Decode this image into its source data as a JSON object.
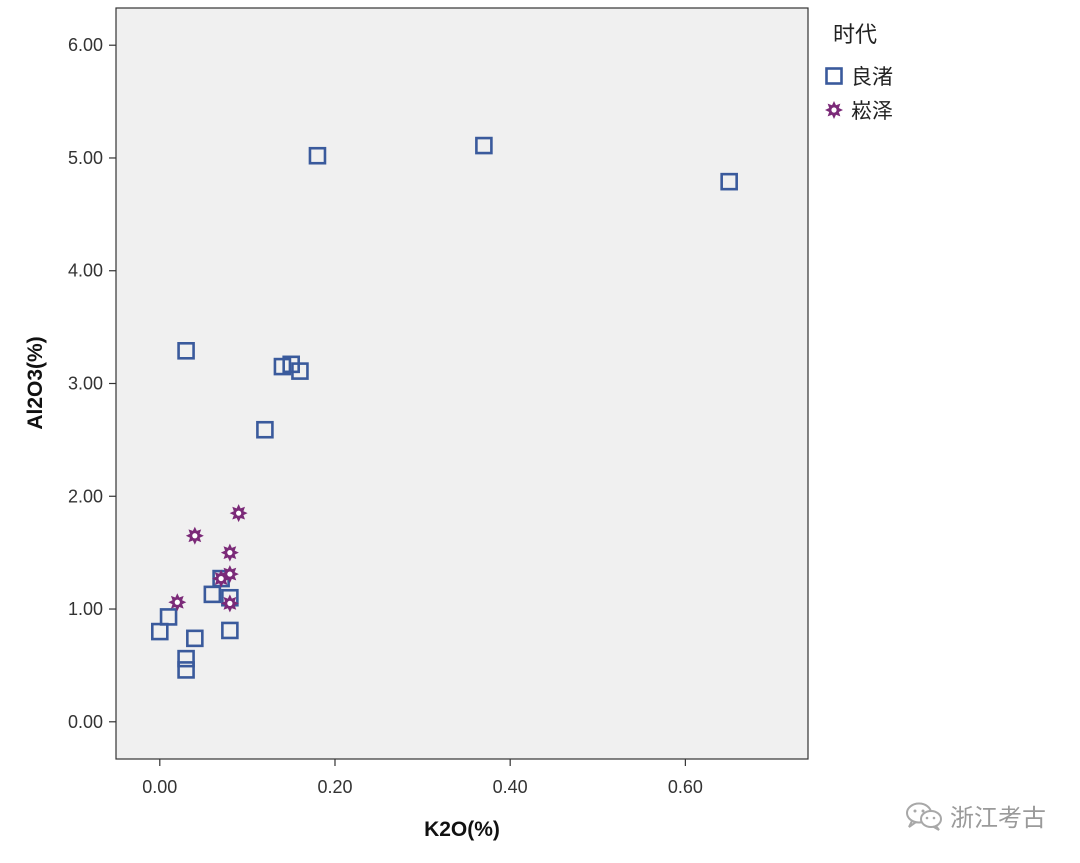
{
  "chart_data": {
    "type": "scatter",
    "xlabel": "K2O(%)",
    "ylabel": "Al2O3(%)",
    "xlim": [
      -0.05,
      0.74
    ],
    "ylim": [
      -0.33,
      6.33
    ],
    "x_ticks": [
      "0.00",
      "0.20",
      "0.40",
      "0.60"
    ],
    "x_tick_values": [
      0,
      0.2,
      0.4,
      0.6
    ],
    "y_ticks": [
      "0.00",
      "1.00",
      "2.00",
      "3.00",
      "4.00",
      "5.00",
      "6.00"
    ],
    "y_tick_values": [
      0,
      1,
      2,
      3,
      4,
      5,
      6
    ],
    "legend": {
      "title": "时代",
      "placement": "right-top"
    },
    "plot_background": "#f0f0f0",
    "grid": false,
    "series": [
      {
        "name": "良渚",
        "marker": "square",
        "color": "#3a5a9c",
        "points": [
          {
            "x": 0.18,
            "y": 5.02
          },
          {
            "x": 0.37,
            "y": 5.11
          },
          {
            "x": 0.65,
            "y": 4.79
          },
          {
            "x": 0.03,
            "y": 3.29
          },
          {
            "x": 0.14,
            "y": 3.15
          },
          {
            "x": 0.15,
            "y": 3.17
          },
          {
            "x": 0.16,
            "y": 3.11
          },
          {
            "x": 0.12,
            "y": 2.59
          },
          {
            "x": 0.07,
            "y": 1.27
          },
          {
            "x": 0.06,
            "y": 1.13
          },
          {
            "x": 0.08,
            "y": 1.1
          },
          {
            "x": 0.01,
            "y": 0.93
          },
          {
            "x": 0.0,
            "y": 0.8
          },
          {
            "x": 0.08,
            "y": 0.81
          },
          {
            "x": 0.04,
            "y": 0.74
          },
          {
            "x": 0.03,
            "y": 0.56
          },
          {
            "x": 0.03,
            "y": 0.46
          }
        ]
      },
      {
        "name": "崧泽",
        "marker": "star",
        "color": "#7b2a78",
        "points": [
          {
            "x": 0.09,
            "y": 1.85
          },
          {
            "x": 0.04,
            "y": 1.65
          },
          {
            "x": 0.08,
            "y": 1.5
          },
          {
            "x": 0.08,
            "y": 1.31
          },
          {
            "x": 0.07,
            "y": 1.27
          },
          {
            "x": 0.02,
            "y": 1.06
          },
          {
            "x": 0.08,
            "y": 1.05
          }
        ]
      }
    ]
  },
  "watermark": {
    "text": "浙江考古",
    "icon": "wechat-icon"
  }
}
